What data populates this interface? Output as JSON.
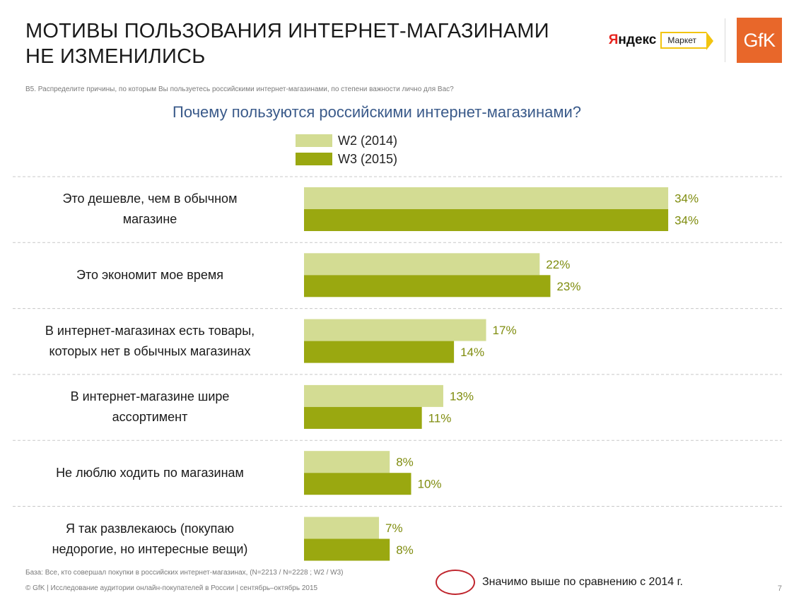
{
  "title_line1": "МОТИВЫ ПОЛЬЗОВАНИЯ ИНТЕРНЕТ-МАГАЗИНАМИ",
  "title_line2": "НЕ ИЗМЕНИЛИСЬ",
  "logos": {
    "yandex_prefix": "Я",
    "yandex_rest": "ндекс",
    "market": "Маркет",
    "gfk": "GfK"
  },
  "question": "В5. Распределите причины, по которым Вы пользуетесь российскими интернет-магазинами, по степени важности лично для Вас?",
  "footnote_base": "База: Все, кто совершал покупки в российских интернет-магазинах, (N=2213 / N=2228 ; W2 / W3)",
  "footnote_copyright": "© GfK | Исследование аудитории онлайн-покупателей в России | сентябрь–октябрь 2015",
  "significance_note": "Значимо выше по сравнению с 2014 г.",
  "page_number": "7",
  "colors": {
    "w2": "#d3dc93",
    "w3": "#9aa810",
    "value_label": "#7f8c0e",
    "divider": "#c8c8c8"
  },
  "chart_data": {
    "type": "bar",
    "orientation": "horizontal",
    "title": "Почему пользуются российскими интернет-магазинами?",
    "categories": [
      [
        "Это дешевле, чем в обычном",
        "магазине"
      ],
      [
        "Это экономит мое время"
      ],
      [
        "В интернет-магазинах есть товары,",
        "которых нет в обычных магазинах"
      ],
      [
        "В интернет-магазине шире",
        "ассортимент"
      ],
      [
        "Не люблю ходить по магазинам"
      ],
      [
        "Я так развлекаюсь (покупаю",
        "недорогие, но интересные вещи)"
      ]
    ],
    "series": [
      {
        "name": "W2 (2014)",
        "values": [
          34,
          22,
          17,
          13,
          8,
          7
        ]
      },
      {
        "name": "W3 (2015)",
        "values": [
          34,
          23,
          14,
          11,
          10,
          8
        ]
      }
    ],
    "value_suffix": "%",
    "xlim": [
      0,
      34
    ],
    "grid": false,
    "legend_position": "top-left"
  }
}
